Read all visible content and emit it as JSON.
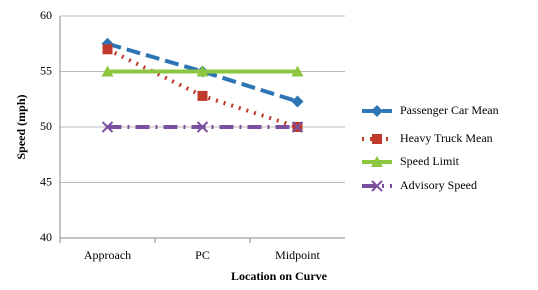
{
  "chart_data": {
    "type": "line",
    "x_label": "Location on Curve",
    "y_label": "Speed (mph)",
    "categories": [
      "Approach",
      "PC",
      "Midpoint"
    ],
    "ylim": [
      40,
      60
    ],
    "yticks": [
      40,
      45,
      50,
      55,
      60
    ],
    "grid": true,
    "legend": "right",
    "series": [
      {
        "name": "Passenger Car Mean",
        "color": "#2e75b6",
        "style": "dashed",
        "marker": "diamond",
        "values": [
          57.5,
          55,
          52.3
        ]
      },
      {
        "name": "Heavy Truck Mean",
        "color": "#c0392b",
        "style": "dotted",
        "marker": "square",
        "values": [
          57,
          52.8,
          50
        ]
      },
      {
        "name": "Speed Limit",
        "color": "#8dc63f",
        "style": "solid",
        "marker": "triangle",
        "values": [
          55,
          55,
          55
        ]
      },
      {
        "name": "Advisory Speed",
        "color": "#7b4fa0",
        "style": "dashdot",
        "marker": "x",
        "values": [
          50,
          50,
          50
        ]
      }
    ]
  }
}
